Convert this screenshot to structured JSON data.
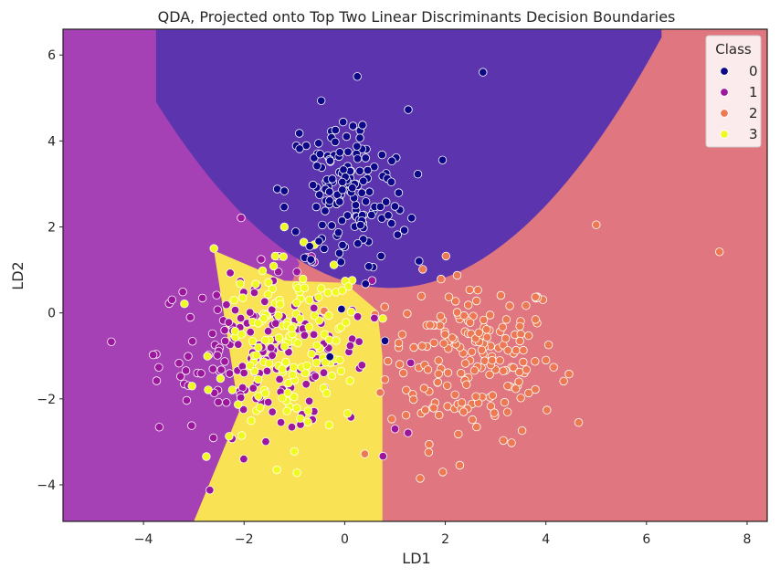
{
  "chart_data": {
    "type": "scatter",
    "title": "QDA, Projected onto Top Two Linear Discriminants Decision Boundaries",
    "xlabel": "LD1",
    "ylabel": "LD2",
    "xlim": [
      -5.6,
      8.4
    ],
    "ylim": [
      -4.85,
      6.6
    ],
    "xticks": [
      -4,
      -2,
      0,
      2,
      4,
      6,
      8
    ],
    "yticks": [
      -4,
      -2,
      0,
      2,
      4,
      6
    ],
    "grid": false,
    "legend": {
      "title": "Class",
      "placement": "top-right"
    },
    "regions": [
      {
        "class": "0",
        "color": "#5c35ae"
      },
      {
        "class": "1",
        "color": "#a541b5"
      },
      {
        "class": "2",
        "color": "#e07780"
      },
      {
        "class": "3",
        "color": "#f9e254"
      }
    ],
    "series": [
      {
        "name": "0",
        "color": "#0d0887",
        "points_shown": 150,
        "center": [
          0.05,
          2.8
        ],
        "spread": [
          0.6,
          0.95
        ]
      },
      {
        "name": "1",
        "color": "#9c179e",
        "points_shown": 190,
        "center": [
          -1.6,
          -0.9
        ],
        "spread": [
          1.05,
          0.95
        ]
      },
      {
        "name": "2",
        "color": "#ed7953",
        "points_shown": 190,
        "center": [
          2.55,
          -1.05
        ],
        "spread": [
          0.85,
          0.95
        ]
      },
      {
        "name": "3",
        "color": "#f0f921",
        "points_shown": 140,
        "center": [
          -1.05,
          -0.8
        ],
        "spread": [
          0.75,
          1.0
        ]
      }
    ],
    "outliers": [
      {
        "class": "0",
        "x": 0.25,
        "y": 5.5
      },
      {
        "class": "0",
        "x": 2.75,
        "y": 5.6
      },
      {
        "class": "0",
        "x": 0.8,
        "y": -0.65
      },
      {
        "class": "2",
        "x": 5.0,
        "y": 2.05
      },
      {
        "class": "2",
        "x": 7.45,
        "y": 1.42
      },
      {
        "class": "2",
        "x": 4.65,
        "y": -2.55
      },
      {
        "class": "2",
        "x": 1.95,
        "y": -3.7
      },
      {
        "class": "2",
        "x": 1.5,
        "y": -3.85
      },
      {
        "class": "2",
        "x": 0.4,
        "y": -3.28
      },
      {
        "class": "1",
        "x": 1.0,
        "y": -2.7
      },
      {
        "class": "3",
        "x": -0.95,
        "y": -3.72
      },
      {
        "class": "3",
        "x": -1.35,
        "y": -3.65
      },
      {
        "class": "3",
        "x": -2.6,
        "y": 1.5
      },
      {
        "class": "3",
        "x": -1.2,
        "y": 2.0
      }
    ]
  }
}
